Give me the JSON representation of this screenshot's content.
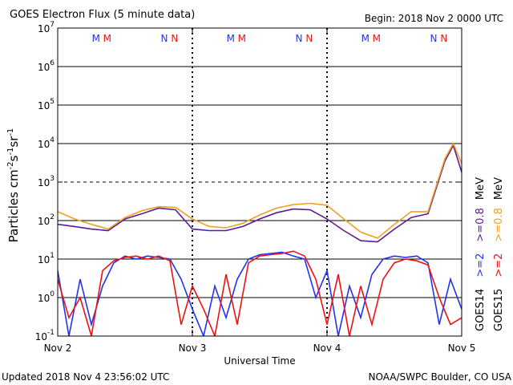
{
  "chart_data": {
    "type": "line",
    "title": "GOES Electron Flux (5 minute data)",
    "subtitle": "Begin: 2018 Nov 2 0000 UTC",
    "xlabel": "Universal Time",
    "ylabel": [
      "Particles cm",
      "-2",
      "s",
      "-1",
      "sr",
      "-1"
    ],
    "footer_left": "Updated 2018 Nov  4 23:56:02 UTC",
    "footer_right": "NOAA/SWPC Boulder, CO USA",
    "log_y": true,
    "grid": true,
    "threshold": 1000,
    "ylim": [
      0.1,
      10000000
    ],
    "yticks": [
      {
        "value": 0.1,
        "label": "10",
        "exponent": "-1"
      },
      {
        "value": 1,
        "label": "10",
        "exponent": "0"
      },
      {
        "value": 10,
        "label": "10",
        "exponent": "1"
      },
      {
        "value": 100,
        "label": "10",
        "exponent": "2"
      },
      {
        "value": 1000,
        "label": "10",
        "exponent": "3"
      },
      {
        "value": 10000,
        "label": "10",
        "exponent": "4"
      },
      {
        "value": 100000,
        "label": "10",
        "exponent": "5"
      },
      {
        "value": 1000000,
        "label": "10",
        "exponent": "6"
      },
      {
        "value": 10000000,
        "label": "10",
        "exponent": "7"
      }
    ],
    "xlim": [
      "2018-11-02T00:00",
      "2018-11-05T00:00"
    ],
    "xticks": [
      {
        "value": "2018-11-02T00:00",
        "label": "Nov 2"
      },
      {
        "value": "2018-11-03T00:00",
        "label": "Nov 3"
      },
      {
        "value": "2018-11-04T00:00",
        "label": "Nov 4"
      },
      {
        "value": "2018-11-05T00:00",
        "label": "Nov 5"
      }
    ],
    "units": "MeV",
    "legend": [
      {
        "label": "GOES14",
        "series": [
          2,
          0
        ]
      },
      {
        "label": "GOES15",
        "series": [
          3,
          1
        ]
      }
    ],
    "day_markers": [
      {
        "label": "M",
        "color": "#2233ee",
        "x": "2018-11-02T06:50"
      },
      {
        "label": "M",
        "color": "#ee1111",
        "x": "2018-11-02T08:50"
      },
      {
        "label": "N",
        "color": "#2233ee",
        "x": "2018-11-02T19:00"
      },
      {
        "label": "N",
        "color": "#ee1111",
        "x": "2018-11-02T20:50"
      },
      {
        "label": "M",
        "color": "#2233ee",
        "x": "2018-11-03T06:50"
      },
      {
        "label": "M",
        "color": "#ee1111",
        "x": "2018-11-03T08:50"
      },
      {
        "label": "N",
        "color": "#2233ee",
        "x": "2018-11-03T19:00"
      },
      {
        "label": "N",
        "color": "#ee1111",
        "x": "2018-11-03T20:50"
      },
      {
        "label": "M",
        "color": "#2233ee",
        "x": "2018-11-04T06:50"
      },
      {
        "label": "M",
        "color": "#ee1111",
        "x": "2018-11-04T08:50"
      },
      {
        "label": "N",
        "color": "#2233ee",
        "x": "2018-11-04T19:00"
      },
      {
        "label": "N",
        "color": "#ee1111",
        "x": "2018-11-04T20:50"
      }
    ],
    "series": [
      {
        "name": ">=0.8",
        "color": "#5a1a9a",
        "x": [
          "2018-11-02T00:00",
          "2018-11-02T03:00",
          "2018-11-02T06:00",
          "2018-11-02T09:00",
          "2018-11-02T12:00",
          "2018-11-02T15:00",
          "2018-11-02T18:00",
          "2018-11-02T21:00",
          "2018-11-03T00:00",
          "2018-11-03T03:00",
          "2018-11-03T06:00",
          "2018-11-03T09:00",
          "2018-11-03T12:00",
          "2018-11-03T15:00",
          "2018-11-03T18:00",
          "2018-11-03T21:00",
          "2018-11-04T00:00",
          "2018-11-04T03:00",
          "2018-11-04T06:00",
          "2018-11-04T09:00",
          "2018-11-04T12:00",
          "2018-11-04T15:00",
          "2018-11-04T18:00",
          "2018-11-04T21:00",
          "2018-11-04T22:30",
          "2018-11-05T00:00"
        ],
        "values": [
          80,
          70,
          60,
          55,
          110,
          150,
          210,
          190,
          60,
          55,
          55,
          70,
          110,
          160,
          200,
          190,
          110,
          55,
          30,
          28,
          60,
          120,
          150,
          3500,
          9000,
          1800
        ]
      },
      {
        "name": ">=0.8",
        "color": "#f0a020",
        "x": [
          "2018-11-02T00:00",
          "2018-11-02T03:00",
          "2018-11-02T06:00",
          "2018-11-02T09:00",
          "2018-11-02T12:00",
          "2018-11-02T15:00",
          "2018-11-02T18:00",
          "2018-11-02T21:00",
          "2018-11-03T00:00",
          "2018-11-03T03:00",
          "2018-11-03T06:00",
          "2018-11-03T09:00",
          "2018-11-03T12:00",
          "2018-11-03T15:00",
          "2018-11-03T18:00",
          "2018-11-03T21:00",
          "2018-11-04T00:00",
          "2018-11-04T03:00",
          "2018-11-04T06:00",
          "2018-11-04T09:00",
          "2018-11-04T12:00",
          "2018-11-04T15:00",
          "2018-11-04T18:00",
          "2018-11-04T21:00",
          "2018-11-04T22:30",
          "2018-11-05T00:00"
        ],
        "values": [
          170,
          110,
          80,
          60,
          120,
          180,
          230,
          220,
          110,
          70,
          65,
          85,
          140,
          210,
          260,
          280,
          250,
          110,
          50,
          35,
          80,
          170,
          170,
          4000,
          10000,
          3000
        ]
      },
      {
        "name": ">=2",
        "color": "#2233ee",
        "x": [
          "2018-11-02T00:00",
          "2018-11-02T02:00",
          "2018-11-02T04:00",
          "2018-11-02T06:00",
          "2018-11-02T08:00",
          "2018-11-02T10:00",
          "2018-11-02T12:00",
          "2018-11-02T14:00",
          "2018-11-02T16:00",
          "2018-11-02T18:00",
          "2018-11-02T20:00",
          "2018-11-02T22:00",
          "2018-11-03T00:00",
          "2018-11-03T02:00",
          "2018-11-03T04:00",
          "2018-11-03T06:00",
          "2018-11-03T08:00",
          "2018-11-03T10:00",
          "2018-11-03T12:00",
          "2018-11-03T14:00",
          "2018-11-03T16:00",
          "2018-11-03T18:00",
          "2018-11-03T20:00",
          "2018-11-03T22:00",
          "2018-11-04T00:00",
          "2018-11-04T02:00",
          "2018-11-04T04:00",
          "2018-11-04T06:00",
          "2018-11-04T08:00",
          "2018-11-04T10:00",
          "2018-11-04T12:00",
          "2018-11-04T14:00",
          "2018-11-04T16:00",
          "2018-11-04T18:00",
          "2018-11-04T20:00",
          "2018-11-04T22:00",
          "2018-11-05T00:00"
        ],
        "values": [
          5,
          0.1,
          3,
          0.2,
          2,
          8,
          12,
          10,
          12,
          11,
          10,
          3,
          0.5,
          0.1,
          2,
          0.3,
          3,
          10,
          13,
          14,
          15,
          12,
          10,
          1,
          5,
          0.1,
          2,
          0.3,
          4,
          10,
          12,
          11,
          12,
          8,
          0.2,
          3,
          0.5
        ]
      },
      {
        "name": ">=2",
        "color": "#ee1111",
        "x": [
          "2018-11-02T00:00",
          "2018-11-02T02:00",
          "2018-11-02T04:00",
          "2018-11-02T06:00",
          "2018-11-02T08:00",
          "2018-11-02T10:00",
          "2018-11-02T12:00",
          "2018-11-02T14:00",
          "2018-11-02T16:00",
          "2018-11-02T18:00",
          "2018-11-02T20:00",
          "2018-11-02T22:00",
          "2018-11-03T00:00",
          "2018-11-03T02:00",
          "2018-11-03T04:00",
          "2018-11-03T06:00",
          "2018-11-03T08:00",
          "2018-11-03T10:00",
          "2018-11-03T12:00",
          "2018-11-03T14:00",
          "2018-11-03T16:00",
          "2018-11-03T18:00",
          "2018-11-03T20:00",
          "2018-11-03T22:00",
          "2018-11-04T00:00",
          "2018-11-04T02:00",
          "2018-11-04T04:00",
          "2018-11-04T06:00",
          "2018-11-04T08:00",
          "2018-11-04T10:00",
          "2018-11-04T12:00",
          "2018-11-04T14:00",
          "2018-11-04T16:00",
          "2018-11-04T18:00",
          "2018-11-04T20:00",
          "2018-11-04T22:00",
          "2018-11-05T00:00"
        ],
        "values": [
          3,
          0.3,
          1,
          0.1,
          5,
          9,
          11,
          12,
          10,
          12,
          9,
          0.2,
          2,
          0.5,
          0.1,
          4,
          0.2,
          8,
          12,
          13,
          14,
          16,
          12,
          3,
          0.2,
          4,
          0.1,
          2,
          0.2,
          3,
          8,
          10,
          9,
          7,
          1,
          0.2,
          0.3
        ]
      }
    ]
  }
}
